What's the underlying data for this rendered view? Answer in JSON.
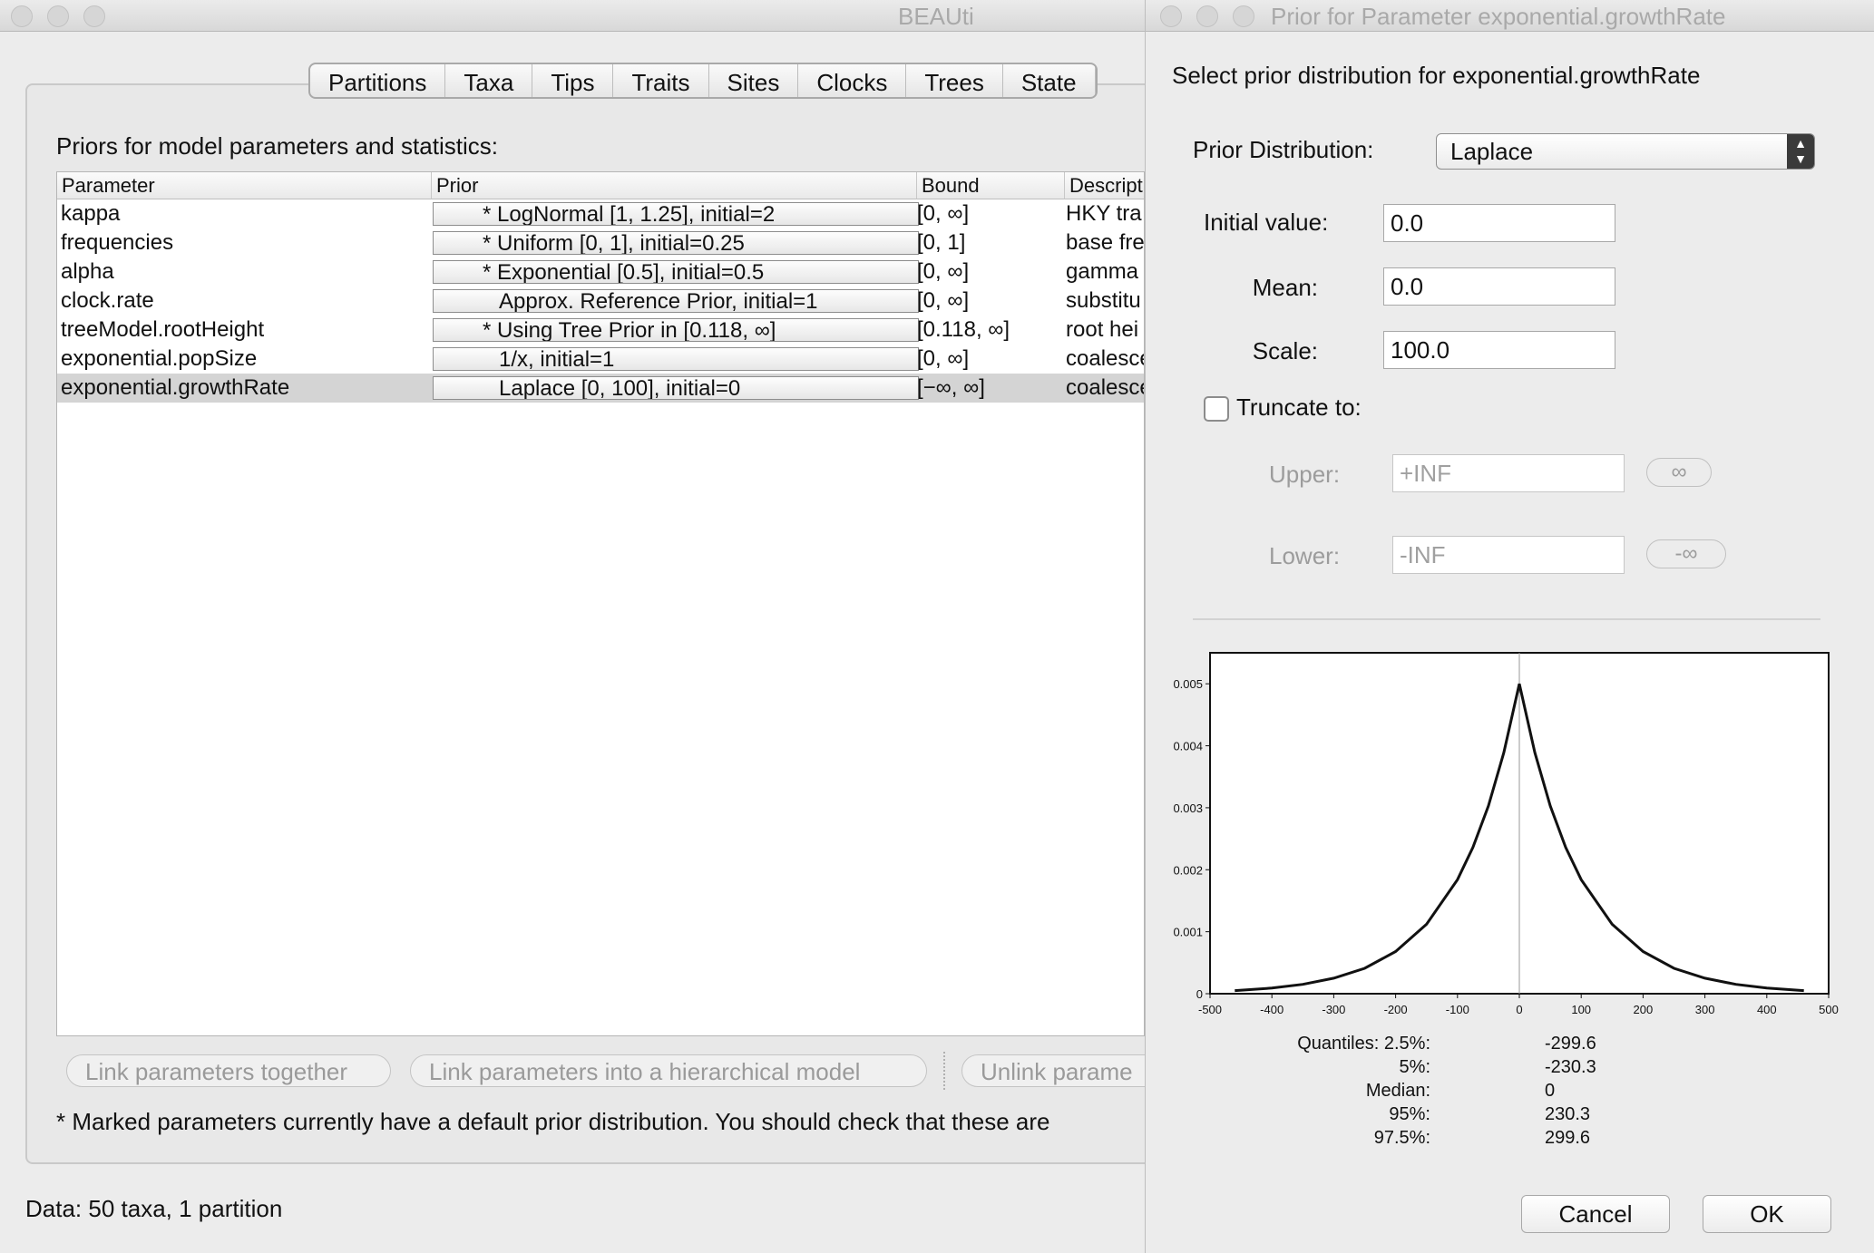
{
  "main_window": {
    "title": "BEAUti",
    "tabs": [
      "Partitions",
      "Taxa",
      "Tips",
      "Traits",
      "Sites",
      "Clocks",
      "Trees",
      "State"
    ],
    "section_label": "Priors for model parameters and statistics:",
    "table": {
      "columns": [
        "Parameter",
        "Prior",
        "Bound",
        "Descript"
      ],
      "rows": [
        {
          "parameter": "kappa",
          "prior": "* LogNormal [1, 1.25], initial=2",
          "bound": "[0, ∞]",
          "description": "HKY tra"
        },
        {
          "parameter": "frequencies",
          "prior": "* Uniform [0, 1], initial=0.25",
          "bound": "[0, 1]",
          "description": "base fre"
        },
        {
          "parameter": "alpha",
          "prior": "* Exponential [0.5], initial=0.5",
          "bound": "[0, ∞]",
          "description": "gamma"
        },
        {
          "parameter": "clock.rate",
          "prior": "Approx. Reference Prior, initial=1",
          "bound": "[0, ∞]",
          "description": "substitu"
        },
        {
          "parameter": "treeModel.rootHeight",
          "prior": "* Using Tree Prior in [0.118, ∞]",
          "bound": "[0.118, ∞]",
          "description": "root hei"
        },
        {
          "parameter": "exponential.popSize",
          "prior": "1/x, initial=1",
          "bound": "[0, ∞]",
          "description": "coalesce"
        },
        {
          "parameter": "exponential.growthRate",
          "prior": "Laplace [0, 100], initial=0",
          "bound": "[−∞, ∞]",
          "description": "coalesce"
        }
      ],
      "selected_row": 6
    },
    "buttons": {
      "link_together": "Link parameters together",
      "link_hierarchical": "Link parameters into a hierarchical model",
      "unlink": "Unlink parame"
    },
    "footnote": "* Marked parameters currently have a default prior distribution. You should check that these are",
    "status": "Data: 50 taxa, 1 partition"
  },
  "dialog": {
    "title": "Prior for Parameter exponential.growthRate",
    "heading": "Select prior distribution for exponential.growthRate",
    "distribution_label": "Prior Distribution:",
    "distribution_value": "Laplace",
    "initial_label": "Initial value:",
    "initial_value": "0.0",
    "mean_label": "Mean:",
    "mean_value": "0.0",
    "scale_label": "Scale:",
    "scale_value": "100.0",
    "truncate_label": "Truncate to:",
    "truncate_checked": false,
    "upper_label": "Upper:",
    "upper_value": "+INF",
    "upper_button": "∞",
    "lower_label": "Lower:",
    "lower_value": "-INF",
    "lower_button": "-∞",
    "quantiles": [
      {
        "label": "Quantiles: 2.5%:",
        "value": "-299.6"
      },
      {
        "label": "5%:",
        "value": "-230.3"
      },
      {
        "label": "Median:",
        "value": "0"
      },
      {
        "label": "95%:",
        "value": "230.3"
      },
      {
        "label": "97.5%:",
        "value": "299.6"
      }
    ],
    "cancel_label": "Cancel",
    "ok_label": "OK"
  },
  "chart_data": {
    "type": "line",
    "title": "",
    "xlabel": "",
    "ylabel": "",
    "xlim": [
      -500,
      500
    ],
    "ylim": [
      0,
      0.0055
    ],
    "x_ticks": [
      -500,
      -400,
      -300,
      -200,
      -100,
      0,
      100,
      200,
      300,
      400,
      500
    ],
    "y_ticks": [
      0,
      0.001,
      0.002,
      0.003,
      0.004,
      0.005
    ],
    "x_tick_labels": [
      "-500",
      "-400",
      "-300",
      "-200",
      "-100",
      "0",
      "100",
      "200",
      "300",
      "400",
      "500"
    ],
    "y_tick_labels": [
      "0",
      "0.001",
      "0.002",
      "0.003",
      "0.004",
      "0.005"
    ],
    "series": [
      {
        "x": [
          -460,
          -400,
          -350,
          -300,
          -250,
          -200,
          -150,
          -100,
          -75,
          -50,
          -25,
          0,
          25,
          50,
          75,
          100,
          150,
          200,
          250,
          300,
          350,
          400,
          460
        ],
        "values": [
          5e-05,
          9e-05,
          0.00015,
          0.00025,
          0.00041,
          0.00068,
          0.00112,
          0.00184,
          0.00236,
          0.00303,
          0.00389,
          0.005,
          0.00389,
          0.00303,
          0.00236,
          0.00184,
          0.00112,
          0.00068,
          0.00041,
          0.00025,
          0.00015,
          9e-05,
          5e-05
        ]
      }
    ],
    "median_line_x": 0,
    "grid": false
  }
}
